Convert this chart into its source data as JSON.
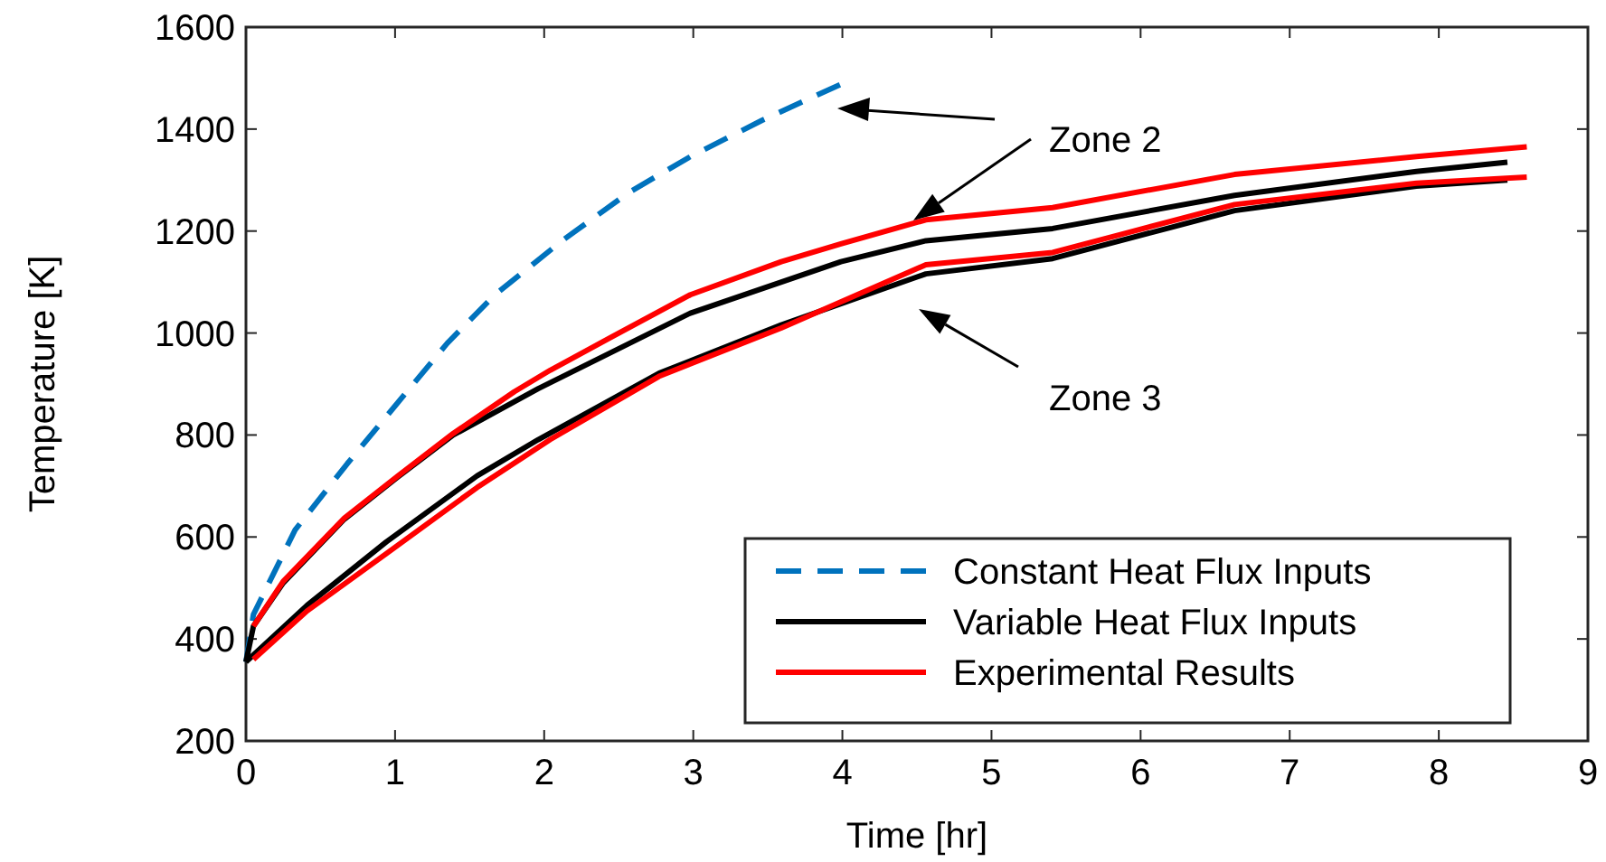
{
  "chart_data": {
    "type": "line",
    "xlabel": "Time [hr]",
    "ylabel": "Temperature [K]",
    "xlim": [
      0,
      9
    ],
    "xticks": [
      0,
      1,
      2,
      3,
      4,
      5,
      6,
      7,
      8,
      9
    ],
    "ylim": [
      200,
      1600
    ],
    "yticks": [
      200,
      400,
      600,
      800,
      1000,
      1200,
      1400,
      1600
    ],
    "grid": false,
    "legend": "bottom right",
    "annotations": [
      "Zone 2",
      "Zone 3"
    ],
    "series": [
      {
        "name": "Constant Heat Flux Inputs",
        "color": "#0072bd",
        "line_style": "dashed",
        "x": [
          0,
          0.05,
          0.33,
          0.68,
          0.98,
          1.35,
          1.67,
          2.12,
          2.57,
          2.98,
          3.46,
          3.99
        ],
        "values": [
          355,
          448,
          614,
          744,
          850,
          980,
          1075,
          1181,
          1276,
          1346,
          1417,
          1488
        ]
      },
      {
        "name": "Variable Heat Flux Inputs",
        "color": "#000000",
        "line_style": "solid",
        "x": [
          0,
          0.05,
          0.25,
          0.66,
          1.02,
          1.39,
          1.96,
          2.98,
          3.99,
          4.56,
          5.41,
          6.63,
          7.85,
          8.46
        ],
        "values": [
          355,
          425,
          510,
          635,
          718,
          800,
          891,
          1039,
          1140,
          1181,
          1205,
          1270,
          1317,
          1335
        ]
      },
      {
        "color": "#000000",
        "line_style": "solid",
        "x": [
          0,
          0.41,
          0.94,
          1.55,
          1.96,
          2.77,
          3.59,
          4.56,
          5.41,
          6.63,
          7.85,
          8.46
        ],
        "values": [
          355,
          466,
          590,
          720,
          791,
          921,
          1016,
          1116,
          1146,
          1240,
          1288,
          1300
        ]
      },
      {
        "name": "Experimental Results",
        "color": "#ff0000",
        "line_style": "solid",
        "x": [
          0.05,
          0.25,
          0.66,
          1.02,
          1.39,
          1.8,
          2.04,
          2.45,
          2.98,
          3.59,
          3.99,
          4.56,
          5.41,
          6.63,
          7.85,
          8.59
        ],
        "values": [
          425,
          513,
          637,
          720,
          803,
          885,
          927,
          992,
          1075,
          1140,
          1175,
          1222,
          1246,
          1311,
          1346,
          1365
        ]
      },
      {
        "color": "#ff0000",
        "line_style": "solid",
        "x": [
          0.05,
          0.41,
          0.94,
          1.55,
          2.04,
          2.77,
          3.59,
          4.56,
          5.41,
          6.63,
          7.85,
          8.59
        ],
        "values": [
          360,
          455,
          567,
          697,
          791,
          915,
          1010,
          1134,
          1158,
          1252,
          1294,
          1306
        ]
      }
    ]
  }
}
